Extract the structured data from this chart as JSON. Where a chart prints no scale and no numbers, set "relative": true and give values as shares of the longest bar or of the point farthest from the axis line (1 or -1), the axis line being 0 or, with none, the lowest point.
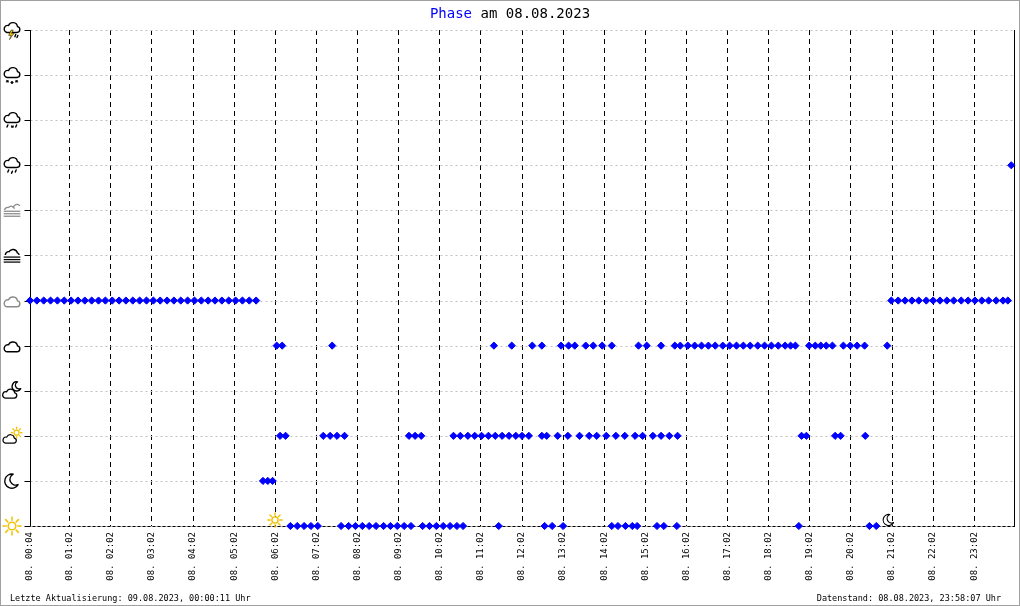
{
  "chart_data": {
    "type": "scatter",
    "title": "Phase am 08.08.2023",
    "annotations": [
      "Letzte Aktualisierung: 09.08.2023, 00:00:11 Uhr",
      "Datenstand: 08.08.2023, 23:58:07 Uhr"
    ],
    "x": [
      "2023-08-08T00:04",
      "2023-08-08T00:14",
      "2023-08-08T00:24",
      "2023-08-08T00:34",
      "2023-08-08T00:44",
      "2023-08-08T00:54",
      "2023-08-08T01:04",
      "2023-08-08T01:14",
      "2023-08-08T01:24",
      "2023-08-08T01:34",
      "2023-08-08T01:44",
      "2023-08-08T01:54",
      "2023-08-08T02:04",
      "2023-08-08T02:14",
      "2023-08-08T02:24",
      "2023-08-08T02:34",
      "2023-08-08T02:44",
      "2023-08-08T02:54",
      "2023-08-08T03:04",
      "2023-08-08T03:14",
      "2023-08-08T03:24",
      "2023-08-08T03:34",
      "2023-08-08T03:44",
      "2023-08-08T03:54",
      "2023-08-08T04:04",
      "2023-08-08T04:14",
      "2023-08-08T04:24",
      "2023-08-08T04:34",
      "2023-08-08T04:44",
      "2023-08-08T04:54",
      "2023-08-08T05:04",
      "2023-08-08T05:14",
      "2023-08-08T05:24",
      "2023-08-08T05:34",
      "2023-08-08T05:44",
      "2023-08-08T05:51",
      "2023-08-08T05:58",
      "2023-08-08T06:04",
      "2023-08-08T06:12",
      "2023-08-08T06:09",
      "2023-08-08T06:17",
      "2023-08-08T06:24",
      "2023-08-08T06:34",
      "2023-08-08T06:44",
      "2023-08-08T06:54",
      "2023-08-08T07:04",
      "2023-08-08T07:12",
      "2023-08-08T07:22",
      "2023-08-08T07:32",
      "2023-08-08T07:43",
      "2023-08-08T07:25",
      "2023-08-08T07:38",
      "2023-08-08T07:49",
      "2023-08-08T07:59",
      "2023-08-08T08:09",
      "2023-08-08T08:19",
      "2023-08-08T08:29",
      "2023-08-08T08:40",
      "2023-08-08T08:50",
      "2023-08-08T09:00",
      "2023-08-08T09:10",
      "2023-08-08T09:20",
      "2023-08-08T09:17",
      "2023-08-08T09:26",
      "2023-08-08T09:35",
      "2023-08-08T09:37",
      "2023-08-08T09:47",
      "2023-08-08T09:57",
      "2023-08-08T10:07",
      "2023-08-08T10:17",
      "2023-08-08T10:27",
      "2023-08-08T10:36",
      "2023-08-08T10:22",
      "2023-08-08T10:32",
      "2023-08-08T10:43",
      "2023-08-08T10:53",
      "2023-08-08T11:03",
      "2023-08-08T11:13",
      "2023-08-08T11:23",
      "2023-08-08T11:33",
      "2023-08-08T11:43",
      "2023-08-08T11:53",
      "2023-08-08T12:02",
      "2023-08-08T12:12",
      "2023-08-08T12:31",
      "2023-08-08T12:38",
      "2023-08-08T12:54",
      "2023-08-08T13:09",
      "2023-08-08T13:26",
      "2023-08-08T13:40",
      "2023-08-08T13:51",
      "2023-08-08T14:05",
      "2023-08-08T14:19",
      "2023-08-08T14:32",
      "2023-08-08T14:47",
      "2023-08-08T14:58",
      "2023-08-08T15:13",
      "2023-08-08T15:25",
      "2023-08-08T15:37",
      "2023-08-08T15:49",
      "2023-08-08T11:21",
      "2023-08-08T11:47",
      "2023-08-08T12:17",
      "2023-08-08T12:31",
      "2023-08-08T12:59",
      "2023-08-08T13:10",
      "2023-08-08T13:19",
      "2023-08-08T13:35",
      "2023-08-08T13:46",
      "2023-08-08T13:59",
      "2023-08-08T14:13",
      "2023-08-08T14:52",
      "2023-08-08T15:04",
      "2023-08-08T15:25",
      "2023-08-08T15:45",
      "2023-08-08T15:53",
      "2023-08-08T16:04",
      "2023-08-08T16:14",
      "2023-08-08T16:24",
      "2023-08-08T16:34",
      "2023-08-08T16:44",
      "2023-08-08T16:55",
      "2023-08-08T17:05",
      "2023-08-08T17:15",
      "2023-08-08T17:25",
      "2023-08-08T17:35",
      "2023-08-08T17:46",
      "2023-08-08T17:56",
      "2023-08-08T18:06",
      "2023-08-08T18:16",
      "2023-08-08T18:26",
      "2023-08-08T18:34",
      "2023-08-08T18:41",
      "2023-08-08T19:01",
      "2023-08-08T19:10",
      "2023-08-08T19:18",
      "2023-08-08T19:26",
      "2023-08-08T19:35",
      "2023-08-08T19:51",
      "2023-08-08T20:01",
      "2023-08-08T20:11",
      "2023-08-08T20:22",
      "2023-08-08T20:55",
      "2023-08-08T18:50",
      "2023-08-08T18:57",
      "2023-08-08T19:39",
      "2023-08-08T19:47",
      "2023-08-08T20:23",
      "2023-08-08T11:28",
      "2023-08-08T12:35",
      "2023-08-08T12:46",
      "2023-08-08T13:02",
      "2023-08-08T14:13",
      "2023-08-08T14:22",
      "2023-08-08T14:33",
      "2023-08-08T14:43",
      "2023-08-08T14:50",
      "2023-08-08T15:19",
      "2023-08-08T15:29",
      "2023-08-08T15:48",
      "2023-08-08T18:46",
      "2023-08-08T20:29",
      "2023-08-08T20:39",
      "2023-08-08T21:01",
      "2023-08-08T21:11",
      "2023-08-08T21:21",
      "2023-08-08T21:31",
      "2023-08-08T21:41",
      "2023-08-08T21:52",
      "2023-08-08T22:02",
      "2023-08-08T22:12",
      "2023-08-08T22:22",
      "2023-08-08T22:32",
      "2023-08-08T22:43",
      "2023-08-08T22:53",
      "2023-08-08T23:03",
      "2023-08-08T23:13",
      "2023-08-08T23:23",
      "2023-08-08T23:34",
      "2023-08-08T23:44",
      "2023-08-08T23:51",
      "2023-08-08T23:56"
    ],
    "values": [
      0.625,
      0.625,
      0.625,
      0.625,
      0.625,
      0.625,
      0.625,
      0.625,
      0.625,
      0.625,
      0.625,
      0.625,
      0.625,
      0.625,
      0.625,
      0.625,
      0.625,
      0.625,
      0.625,
      0.625,
      0.625,
      0.625,
      0.625,
      0.625,
      0.625,
      0.625,
      0.625,
      0.625,
      0.625,
      0.625,
      0.625,
      0.625,
      0.625,
      0.625,
      0.125,
      0.125,
      0.125,
      0.5,
      0.5,
      0.25,
      0.25,
      0,
      0,
      0,
      0,
      0,
      0.25,
      0.25,
      0.25,
      0.25,
      0.5,
      0,
      0,
      0,
      0,
      0,
      0,
      0,
      0,
      0,
      0,
      0,
      0.25,
      0.25,
      0.25,
      0,
      0,
      0,
      0,
      0,
      0,
      0,
      0.25,
      0.25,
      0.25,
      0.25,
      0.25,
      0.25,
      0.25,
      0.25,
      0.25,
      0.25,
      0.25,
      0.25,
      0.25,
      0.25,
      0.25,
      0.25,
      0.25,
      0.25,
      0.25,
      0.25,
      0.25,
      0.25,
      0.25,
      0.25,
      0.25,
      0.25,
      0.25,
      0.25,
      0.5,
      0.5,
      0.5,
      0.5,
      0.5,
      0.5,
      0.5,
      0.5,
      0.5,
      0.5,
      0.5,
      0.5,
      0.5,
      0.5,
      0.5,
      0.5,
      0.5,
      0.5,
      0.5,
      0.5,
      0.5,
      0.5,
      0.5,
      0.5,
      0.5,
      0.5,
      0.5,
      0.5,
      0.5,
      0.5,
      0.5,
      0.5,
      0.5,
      0.5,
      0.5,
      0.5,
      0.5,
      0.5,
      0.5,
      0.5,
      0.5,
      0.5,
      0.5,
      0.25,
      0.25,
      0.25,
      0.25,
      0.25,
      0,
      0,
      0,
      0,
      0,
      0,
      0,
      0,
      0,
      0,
      0,
      0,
      0,
      0,
      0,
      0.625,
      0.625,
      0.625,
      0.625,
      0.625,
      0.625,
      0.625,
      0.625,
      0.625,
      0.625,
      0.625,
      0.625,
      0.625,
      0.625,
      0.625,
      0.625,
      0.625,
      0.625,
      1
    ],
    "relative": true,
    "color": "#0000ff",
    "marker": "diamond",
    "xlim": [
      "2023-08-08T00:04",
      "2023-08-09T00:00"
    ],
    "xticks": [
      {
        "value": "2023-08-08T00:04",
        "label": "08. 00:04"
      },
      {
        "value": "2023-08-08T01:02",
        "label": "08. 01:02"
      },
      {
        "value": "2023-08-08T02:02",
        "label": "08. 02:02"
      },
      {
        "value": "2023-08-08T03:02",
        "label": "08. 03:02"
      },
      {
        "value": "2023-08-08T04:02",
        "label": "08. 04:02"
      },
      {
        "value": "2023-08-08T05:02",
        "label": "08. 05:02"
      },
      {
        "value": "2023-08-08T06:02",
        "label": "08. 06:02"
      },
      {
        "value": "2023-08-08T07:02",
        "label": "08. 07:02"
      },
      {
        "value": "2023-08-08T08:02",
        "label": "08. 08:02"
      },
      {
        "value": "2023-08-08T09:02",
        "label": "08. 09:02"
      },
      {
        "value": "2023-08-08T10:02",
        "label": "08. 10:02"
      },
      {
        "value": "2023-08-08T11:02",
        "label": "08. 11:02"
      },
      {
        "value": "2023-08-08T12:02",
        "label": "08. 12:02"
      },
      {
        "value": "2023-08-08T13:02",
        "label": "08. 13:02"
      },
      {
        "value": "2023-08-08T14:02",
        "label": "08. 14:02"
      },
      {
        "value": "2023-08-08T15:02",
        "label": "08. 15:02"
      },
      {
        "value": "2023-08-08T16:02",
        "label": "08. 16:02"
      },
      {
        "value": "2023-08-08T17:02",
        "label": "08. 17:02"
      },
      {
        "value": "2023-08-08T18:02",
        "label": "08. 18:02"
      },
      {
        "value": "2023-08-08T19:02",
        "label": "08. 19:02"
      },
      {
        "value": "2023-08-08T20:02",
        "label": "08. 20:02"
      },
      {
        "value": "2023-08-08T21:02",
        "label": "08. 21:02"
      },
      {
        "value": "2023-08-08T22:02",
        "label": "08. 22:02"
      },
      {
        "value": "2023-08-08T23:02",
        "label": "08. 23:02"
      }
    ],
    "grid": true,
    "tick_labels": "x"
  }
}
